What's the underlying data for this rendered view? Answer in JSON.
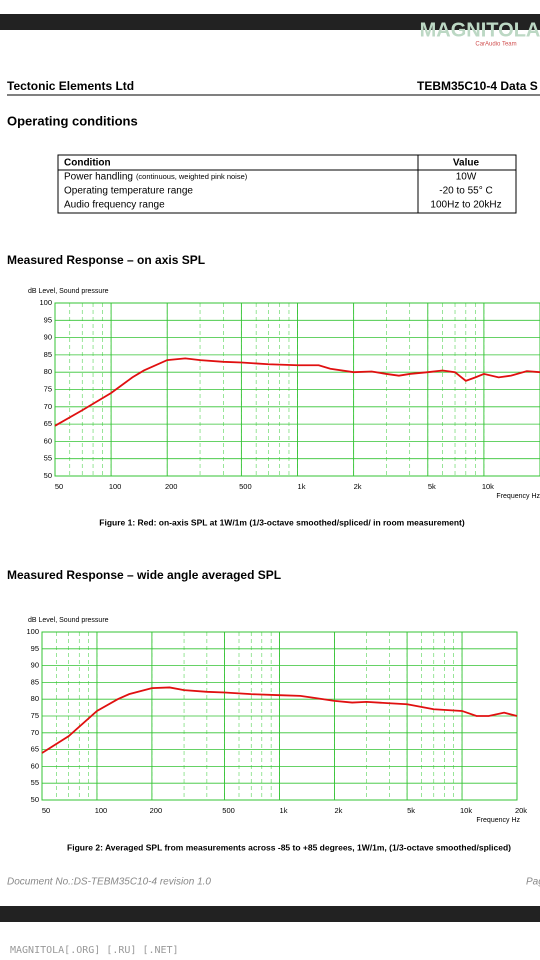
{
  "brand": {
    "logo": "MAGNITOLA",
    "tagline": "CarAudio Team"
  },
  "header": {
    "company": "Tectonic Elements Ltd",
    "doc": "TEBM35C10-4 Data S"
  },
  "section_title": "Operating conditions",
  "table": {
    "columns": [
      "Condition",
      "Value"
    ],
    "rows": [
      {
        "condition": "Power handling",
        "note": "(continuous, weighted  pink noise)",
        "value": "10W"
      },
      {
        "condition": "Operating temperature range",
        "value": "-20 to 55° C"
      },
      {
        "condition": "Audio frequency range",
        "value": "100Hz to 20kHz"
      }
    ]
  },
  "chart_data": [
    {
      "type": "line",
      "heading": "Measured Response – on axis SPL",
      "y_label": "dB  Level, Sound pressure",
      "x_label": "Frequency  Hz",
      "caption": "Figure 1: Red: on-axis SPL at 1W/1m (1/3-octave smoothed/spliced/ in room measurement)",
      "xscale": "log",
      "xlim": [
        50,
        20000
      ],
      "ylim": [
        50,
        100
      ],
      "xticks": [
        50,
        100,
        200,
        500,
        {
          "value": 1000,
          "label": "1k"
        },
        {
          "value": 2000,
          "label": "2k"
        },
        {
          "value": 5000,
          "label": "5k"
        },
        {
          "value": 10000,
          "label": "10k"
        }
      ],
      "yticks": [
        50,
        55,
        60,
        65,
        70,
        75,
        80,
        85,
        90,
        95,
        100
      ],
      "grid": true,
      "x": [
        50,
        70,
        100,
        130,
        150,
        200,
        250,
        300,
        400,
        500,
        700,
        1000,
        1300,
        1500,
        2000,
        2500,
        3000,
        3500,
        4000,
        5000,
        6000,
        7000,
        8000,
        9000,
        10000,
        12000,
        14000,
        17000,
        20000
      ],
      "series": [
        {
          "color": "#e01010",
          "values": [
            64.5,
            69,
            74,
            78.5,
            80.5,
            83.5,
            84,
            83.5,
            83,
            82.8,
            82.3,
            82,
            82,
            81,
            80,
            80.2,
            79.5,
            79,
            79.5,
            80,
            80.5,
            80,
            77.5,
            78.5,
            79.5,
            78.5,
            79,
            80.3,
            80
          ]
        }
      ]
    },
    {
      "type": "line",
      "heading": "Measured Response – wide angle averaged SPL",
      "y_label": "dB  Level, Sound pressure",
      "x_label": "Frequency  Hz",
      "caption": "Figure 2: Averaged SPL from measurements across -85 to +85 degrees, 1W/1m, (1/3-octave smoothed/spliced)",
      "xscale": "log",
      "xlim": [
        50,
        20000
      ],
      "ylim": [
        50,
        100
      ],
      "xticks": [
        50,
        100,
        200,
        500,
        {
          "value": 1000,
          "label": "1k"
        },
        {
          "value": 2000,
          "label": "2k"
        },
        {
          "value": 5000,
          "label": "5k"
        },
        {
          "value": 10000,
          "label": "10k"
        },
        {
          "value": 20000,
          "label": "20k"
        }
      ],
      "yticks": [
        50,
        55,
        60,
        65,
        70,
        75,
        80,
        85,
        90,
        95,
        100
      ],
      "grid": true,
      "x": [
        50,
        70,
        100,
        130,
        150,
        200,
        250,
        300,
        400,
        500,
        700,
        1000,
        1300,
        1500,
        2000,
        2500,
        3000,
        4000,
        5000,
        7000,
        10000,
        12000,
        14000,
        17000,
        20000
      ],
      "series": [
        {
          "color": "#e01010",
          "values": [
            64,
            69,
            76.5,
            80,
            81.5,
            83.3,
            83.5,
            82.7,
            82.2,
            82,
            81.5,
            81.2,
            81,
            80.5,
            79.5,
            79,
            79.2,
            78.8,
            78.5,
            77,
            76.5,
            75,
            75,
            76,
            75
          ]
        }
      ]
    }
  ],
  "footer": {
    "doc_no": "Document No.:DS-TEBM35C10-4 revision 1.0",
    "page": "Pag"
  },
  "watermark": "MAGNITOLA[.ORG] [.RU] [.NET]"
}
